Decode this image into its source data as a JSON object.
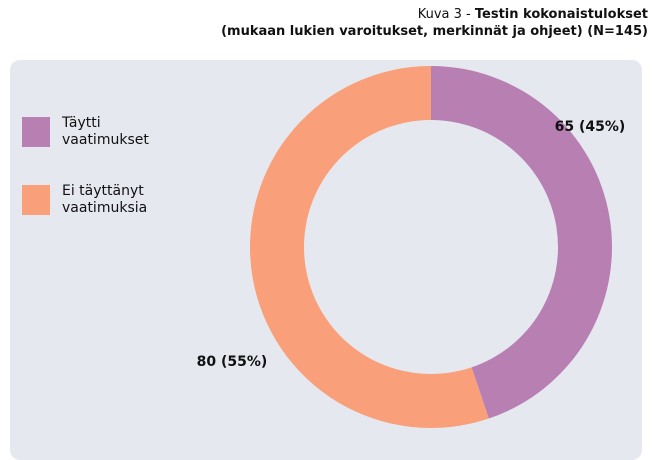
{
  "chart_data": {
    "type": "donut",
    "title_prefix": "Kuva 3 -",
    "title": "Testin kokonaistulokset",
    "subtitle": "(mukaan lukien varoitukset, merkinnät ja ohjeet) (N=145)",
    "series": [
      {
        "name": "Täytti vaatimukset",
        "color": "#b87fb3",
        "values": [
          65
        ],
        "value_labels": [
          "65 (45%)"
        ]
      },
      {
        "name": "Ei täyttänyt vaatimuksia",
        "color": "#f9a07a",
        "values": [
          80
        ],
        "value_labels": [
          "80 (55%)"
        ]
      }
    ]
  }
}
